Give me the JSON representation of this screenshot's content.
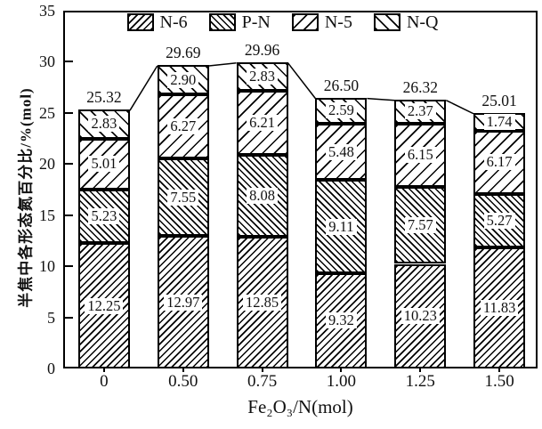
{
  "chart_data": {
    "type": "bar",
    "stacked": true,
    "title": "",
    "categories": [
      "0",
      "0.50",
      "0.75",
      "1.00",
      "1.25",
      "1.50"
    ],
    "series": [
      {
        "name": "N-6",
        "hatch": "dense-forward",
        "values": [
          "12.25",
          "12.97",
          "12.85",
          "9.32",
          "10.23",
          "11.83"
        ]
      },
      {
        "name": "P-N",
        "hatch": "dense-backward",
        "values": [
          "5.23",
          "7.55",
          "8.08",
          "9.11",
          "7.57",
          "5.27"
        ]
      },
      {
        "name": "N-5",
        "hatch": "sparse-forward",
        "values": [
          "5.01",
          "6.27",
          "6.21",
          "5.48",
          "6.15",
          "6.17"
        ]
      },
      {
        "name": "N-Q",
        "hatch": "sparse-backward",
        "values": [
          "2.83",
          "2.90",
          "2.83",
          "2.59",
          "2.37",
          "1.74"
        ]
      }
    ],
    "totals": [
      "25.32",
      "29.69",
      "29.96",
      "26.50",
      "26.32",
      "25.01"
    ],
    "xlabel": "Fe₂O₃/N(mol)",
    "ylabel": "半焦中各形态氮百分比/%(mol)",
    "ylim": [
      0,
      35
    ],
    "ytick_step": 5,
    "yticks": [
      "0",
      "5",
      "10",
      "15",
      "20",
      "25",
      "30",
      "35"
    ],
    "legend": {
      "position": "top-center"
    },
    "grid": false,
    "connector_line_between_bar_tops": true,
    "colors": {
      "foreground": "#000000",
      "background": "#ffffff",
      "bar_fill": "#ffffff",
      "hatch": "#000000"
    }
  }
}
